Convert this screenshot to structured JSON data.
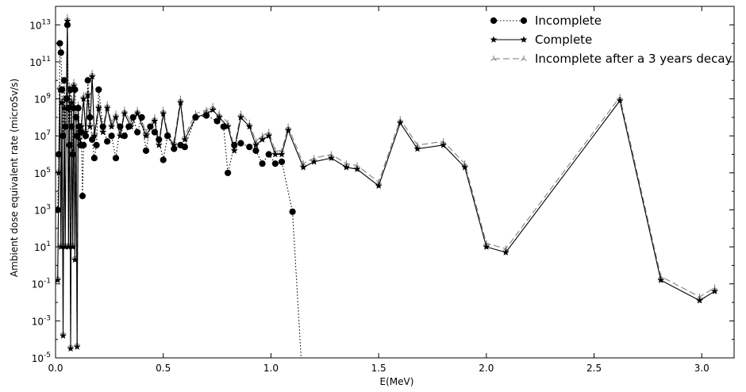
{
  "chart_data": {
    "type": "line",
    "xlabel": "E(MeV)",
    "ylabel": "Ambient dose equivalent rate (microSv/s)",
    "xlim": [
      0.0,
      3.15
    ],
    "ylim_exp": [
      -5,
      14
    ],
    "y_scale": "log",
    "grid": false,
    "legend_position": "top-right",
    "x_ticks": [
      {
        "value": 0.0,
        "label": "0.0"
      },
      {
        "value": 0.5,
        "label": "0.5"
      },
      {
        "value": 1.0,
        "label": "1.0"
      },
      {
        "value": 1.5,
        "label": "1.5"
      },
      {
        "value": 2.0,
        "label": "2.0"
      },
      {
        "value": 2.5,
        "label": "2.5"
      },
      {
        "value": 3.0,
        "label": "3.0"
      }
    ],
    "y_ticks": [
      {
        "exp": -5,
        "base": "10",
        "sup": "-5"
      },
      {
        "exp": -3,
        "base": "10",
        "sup": "-3"
      },
      {
        "exp": -1,
        "base": "10",
        "sup": "-1"
      },
      {
        "exp": 1,
        "base": "10",
        "sup": "1"
      },
      {
        "exp": 3,
        "base": "10",
        "sup": "3"
      },
      {
        "exp": 5,
        "base": "10",
        "sup": "5"
      },
      {
        "exp": 7,
        "base": "10",
        "sup": "7"
      },
      {
        "exp": 9,
        "base": "10",
        "sup": "9"
      },
      {
        "exp": 11,
        "base": "10",
        "sup": "11"
      },
      {
        "exp": 13,
        "base": "10",
        "sup": "13"
      }
    ],
    "series": [
      {
        "name": "Incomplete",
        "color": "#000000",
        "line_style": "dotted",
        "marker": "circle",
        "points": [
          [
            0.01,
            3.0
          ],
          [
            0.015,
            6.0
          ],
          [
            0.02,
            12.0
          ],
          [
            0.025,
            11.5
          ],
          [
            0.03,
            9.5
          ],
          [
            0.035,
            7.0
          ],
          [
            0.04,
            10.0
          ],
          [
            0.045,
            7.5
          ],
          [
            0.05,
            9.0
          ],
          [
            0.055,
            13.0
          ],
          [
            0.06,
            8.5
          ],
          [
            0.065,
            6.5
          ],
          [
            0.07,
            9.5
          ],
          [
            0.075,
            7.5
          ],
          [
            0.08,
            6.0
          ],
          [
            0.085,
            8.5
          ],
          [
            0.09,
            9.5
          ],
          [
            0.095,
            8.0
          ],
          [
            0.1,
            7.0
          ],
          [
            0.105,
            8.5
          ],
          [
            0.11,
            7.5
          ],
          [
            0.115,
            6.5
          ],
          [
            0.12,
            7.2
          ],
          [
            0.125,
            3.75
          ],
          [
            0.13,
            6.5
          ],
          [
            0.14,
            7.0
          ],
          [
            0.15,
            10.0
          ],
          [
            0.16,
            8.0
          ],
          [
            0.17,
            6.8
          ],
          [
            0.18,
            5.8
          ],
          [
            0.19,
            6.5
          ],
          [
            0.2,
            9.5
          ],
          [
            0.22,
            7.5
          ],
          [
            0.24,
            6.7
          ],
          [
            0.26,
            7.0
          ],
          [
            0.28,
            5.8
          ],
          [
            0.3,
            7.5
          ],
          [
            0.32,
            7.0
          ],
          [
            0.34,
            7.5
          ],
          [
            0.36,
            8.0
          ],
          [
            0.38,
            7.2
          ],
          [
            0.4,
            8.0
          ],
          [
            0.42,
            6.2
          ],
          [
            0.44,
            7.5
          ],
          [
            0.46,
            7.2
          ],
          [
            0.48,
            6.8
          ],
          [
            0.5,
            5.7
          ],
          [
            0.52,
            7.0
          ],
          [
            0.55,
            6.3
          ],
          [
            0.58,
            6.5
          ],
          [
            0.6,
            6.4
          ],
          [
            0.65,
            8.0
          ],
          [
            0.7,
            8.1
          ],
          [
            0.75,
            7.8
          ],
          [
            0.78,
            7.5
          ],
          [
            0.8,
            5.0
          ],
          [
            0.83,
            6.5
          ],
          [
            0.86,
            6.6
          ],
          [
            0.9,
            6.4
          ],
          [
            0.93,
            6.2
          ],
          [
            0.96,
            5.5
          ],
          [
            0.99,
            6.0
          ],
          [
            1.02,
            5.5
          ],
          [
            1.05,
            5.6
          ],
          [
            1.1,
            2.9
          ],
          [
            1.14,
            -5.0
          ]
        ]
      },
      {
        "name": "Complete",
        "color": "#000000",
        "line_style": "solid",
        "marker": "star",
        "points": [
          [
            0.01,
            -0.8
          ],
          [
            0.015,
            5.0
          ],
          [
            0.02,
            9.5
          ],
          [
            0.025,
            1.0
          ],
          [
            0.03,
            8.8
          ],
          [
            0.035,
            -3.8
          ],
          [
            0.04,
            8.5
          ],
          [
            0.045,
            1.0
          ],
          [
            0.05,
            9.0
          ],
          [
            0.055,
            13.2
          ],
          [
            0.06,
            1.0
          ],
          [
            0.065,
            9.5
          ],
          [
            0.07,
            -4.5
          ],
          [
            0.075,
            8.8
          ],
          [
            0.08,
            1.0
          ],
          [
            0.085,
            9.7
          ],
          [
            0.09,
            0.3
          ],
          [
            0.095,
            8.0
          ],
          [
            0.1,
            -4.4
          ],
          [
            0.105,
            8.5
          ],
          [
            0.11,
            6.8
          ],
          [
            0.12,
            7.5
          ],
          [
            0.13,
            9.0
          ],
          [
            0.14,
            7.2
          ],
          [
            0.15,
            9.2
          ],
          [
            0.16,
            7.5
          ],
          [
            0.17,
            10.2
          ],
          [
            0.18,
            7.0
          ],
          [
            0.2,
            8.5
          ],
          [
            0.22,
            7.2
          ],
          [
            0.24,
            8.5
          ],
          [
            0.26,
            7.5
          ],
          [
            0.28,
            8.0
          ],
          [
            0.3,
            7.0
          ],
          [
            0.32,
            8.2
          ],
          [
            0.35,
            7.5
          ],
          [
            0.38,
            8.2
          ],
          [
            0.42,
            7.0
          ],
          [
            0.46,
            7.8
          ],
          [
            0.48,
            6.5
          ],
          [
            0.5,
            8.2
          ],
          [
            0.52,
            7.0
          ],
          [
            0.55,
            6.5
          ],
          [
            0.58,
            8.8
          ],
          [
            0.6,
            6.8
          ],
          [
            0.65,
            8.0
          ],
          [
            0.7,
            8.2
          ],
          [
            0.73,
            8.4
          ],
          [
            0.76,
            8.0
          ],
          [
            0.8,
            7.5
          ],
          [
            0.83,
            6.2
          ],
          [
            0.86,
            8.0
          ],
          [
            0.9,
            7.5
          ],
          [
            0.93,
            6.5
          ],
          [
            0.96,
            6.8
          ],
          [
            0.99,
            7.0
          ],
          [
            1.02,
            6.0
          ],
          [
            1.05,
            6.0
          ],
          [
            1.08,
            7.3
          ],
          [
            1.15,
            5.3
          ],
          [
            1.2,
            5.6
          ],
          [
            1.28,
            5.8
          ],
          [
            1.35,
            5.3
          ],
          [
            1.4,
            5.2
          ],
          [
            1.5,
            4.3
          ],
          [
            1.6,
            7.7
          ],
          [
            1.68,
            6.3
          ],
          [
            1.8,
            6.5
          ],
          [
            1.9,
            5.3
          ],
          [
            2.0,
            1.0
          ],
          [
            2.09,
            0.7
          ],
          [
            2.62,
            8.9
          ],
          [
            2.81,
            -0.8
          ],
          [
            2.99,
            -1.9
          ],
          [
            3.06,
            -1.4
          ]
        ]
      },
      {
        "name": "Incomplete after a 3 years decay",
        "color": "#777777",
        "line_style": "dashed",
        "marker": "tri",
        "points": [
          [
            0.01,
            -0.6
          ],
          [
            0.015,
            5.2
          ],
          [
            0.02,
            9.7
          ],
          [
            0.025,
            1.2
          ],
          [
            0.03,
            9.0
          ],
          [
            0.035,
            -3.6
          ],
          [
            0.04,
            8.7
          ],
          [
            0.045,
            1.2
          ],
          [
            0.05,
            9.2
          ],
          [
            0.055,
            13.4
          ],
          [
            0.06,
            1.2
          ],
          [
            0.065,
            9.7
          ],
          [
            0.07,
            -4.3
          ],
          [
            0.075,
            9.0
          ],
          [
            0.08,
            1.2
          ],
          [
            0.085,
            9.9
          ],
          [
            0.09,
            0.5
          ],
          [
            0.095,
            8.2
          ],
          [
            0.1,
            -4.2
          ],
          [
            0.105,
            8.7
          ],
          [
            0.11,
            7.0
          ],
          [
            0.12,
            7.7
          ],
          [
            0.13,
            9.2
          ],
          [
            0.14,
            7.4
          ],
          [
            0.15,
            9.4
          ],
          [
            0.16,
            7.7
          ],
          [
            0.17,
            10.4
          ],
          [
            0.18,
            7.2
          ],
          [
            0.2,
            8.7
          ],
          [
            0.22,
            7.4
          ],
          [
            0.24,
            8.7
          ],
          [
            0.26,
            7.7
          ],
          [
            0.28,
            8.2
          ],
          [
            0.3,
            7.2
          ],
          [
            0.32,
            8.4
          ],
          [
            0.35,
            7.7
          ],
          [
            0.38,
            8.4
          ],
          [
            0.42,
            7.2
          ],
          [
            0.46,
            8.0
          ],
          [
            0.48,
            6.7
          ],
          [
            0.5,
            8.4
          ],
          [
            0.52,
            7.2
          ],
          [
            0.55,
            6.7
          ],
          [
            0.58,
            9.0
          ],
          [
            0.6,
            7.0
          ],
          [
            0.65,
            8.2
          ],
          [
            0.7,
            8.4
          ],
          [
            0.73,
            8.6
          ],
          [
            0.76,
            8.2
          ],
          [
            0.8,
            7.7
          ],
          [
            0.83,
            6.4
          ],
          [
            0.86,
            8.2
          ],
          [
            0.9,
            7.7
          ],
          [
            0.93,
            6.7
          ],
          [
            0.96,
            7.0
          ],
          [
            0.99,
            7.2
          ],
          [
            1.02,
            6.2
          ],
          [
            1.05,
            6.2
          ],
          [
            1.08,
            7.5
          ],
          [
            1.15,
            5.5
          ],
          [
            1.2,
            5.8
          ],
          [
            1.28,
            6.0
          ],
          [
            1.35,
            5.5
          ],
          [
            1.4,
            5.4
          ],
          [
            1.5,
            4.5
          ],
          [
            1.6,
            7.9
          ],
          [
            1.68,
            6.5
          ],
          [
            1.8,
            6.7
          ],
          [
            1.9,
            5.5
          ],
          [
            2.0,
            1.2
          ],
          [
            2.09,
            0.9
          ],
          [
            2.62,
            9.1
          ],
          [
            2.81,
            -0.6
          ],
          [
            2.99,
            -1.7
          ],
          [
            3.06,
            -1.2
          ]
        ]
      }
    ]
  }
}
